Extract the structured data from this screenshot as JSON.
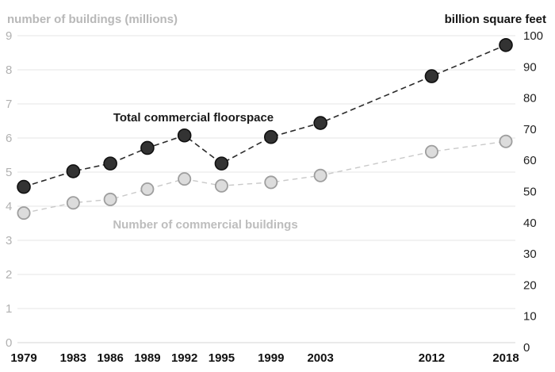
{
  "chart_data": {
    "type": "line",
    "x": [
      1979,
      1983,
      1986,
      1989,
      1992,
      1995,
      1999,
      2003,
      2012,
      2018
    ],
    "x_tick_labels": [
      "1979",
      "1983",
      "1986",
      "1989",
      "1992",
      "1995",
      "1999",
      "2003",
      "2012",
      "2018"
    ],
    "left_axis": {
      "title": "number of buildings (millions)",
      "min": 0,
      "max": 9,
      "step": 1,
      "tick_labels": [
        "0",
        "1",
        "2",
        "3",
        "4",
        "5",
        "6",
        "7",
        "8",
        "9"
      ]
    },
    "right_axis": {
      "title": "billion square feet",
      "min": 0,
      "max": 100,
      "step": 10,
      "tick_labels": [
        "0",
        "10",
        "20",
        "30",
        "40",
        "50",
        "60",
        "70",
        "80",
        "90",
        "100"
      ]
    },
    "series": [
      {
        "name": "Total commercial floorspace",
        "axis": "right",
        "values": [
          51.5,
          56.5,
          59,
          64,
          68,
          59,
          67.5,
          72,
          87,
          97
        ],
        "marker_fill": "#333333",
        "marker_stroke": "#101010",
        "line_color": "#2b2b2b",
        "label_color": "#1a1a1a"
      },
      {
        "name": "Number of commercial buildings",
        "axis": "left",
        "values": [
          3.8,
          4.1,
          4.2,
          4.5,
          4.8,
          4.6,
          4.7,
          4.9,
          5.6,
          5.9
        ],
        "marker_fill": "#dcdcdc",
        "marker_stroke": "#9e9e9e",
        "line_color": "#c9c9c9",
        "label_color": "#bdbdbd"
      }
    ],
    "grid": true,
    "legend_position": "inline-labels",
    "colors": {
      "grid": "#e4e4e4",
      "axis_bottom": "#d6d6d6",
      "left_tick": "#b1b1b1",
      "right_tick": "#1f1f1f",
      "year_tick": "#111111"
    }
  }
}
